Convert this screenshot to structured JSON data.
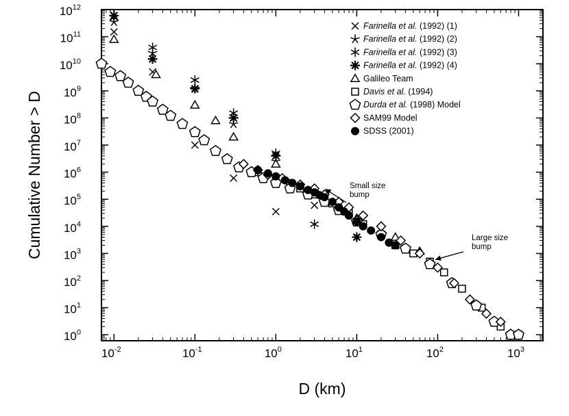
{
  "chart_data": {
    "type": "scatter",
    "title": "",
    "xlabel": "D (km)",
    "ylabel": "Cumulative Number > D",
    "x_scale": "log",
    "y_scale": "log",
    "xlim": [
      0.007,
      2000
    ],
    "ylim": [
      0.6,
      1000000000000.0
    ],
    "x_ticks": [
      {
        "value": 0.01,
        "base": "10",
        "exp": "-2"
      },
      {
        "value": 0.1,
        "base": "10",
        "exp": "-1"
      },
      {
        "value": 1,
        "base": "10",
        "exp": "0"
      },
      {
        "value": 10,
        "base": "10",
        "exp": "1"
      },
      {
        "value": 100,
        "base": "10",
        "exp": "2"
      },
      {
        "value": 1000,
        "base": "10",
        "exp": "3"
      }
    ],
    "y_ticks": [
      {
        "value": 1,
        "base": "10",
        "exp": "0"
      },
      {
        "value": 10,
        "base": "10",
        "exp": "1"
      },
      {
        "value": 100,
        "base": "10",
        "exp": "2"
      },
      {
        "value": 1000,
        "base": "10",
        "exp": "3"
      },
      {
        "value": 10000,
        "base": "10",
        "exp": "4"
      },
      {
        "value": 100000,
        "base": "10",
        "exp": "5"
      },
      {
        "value": 1000000,
        "base": "10",
        "exp": "6"
      },
      {
        "value": 10000000,
        "base": "10",
        "exp": "7"
      },
      {
        "value": 100000000,
        "base": "10",
        "exp": "8"
      },
      {
        "value": 1000000000,
        "base": "10",
        "exp": "9"
      },
      {
        "value": 10000000000,
        "base": "10",
        "exp": "10"
      },
      {
        "value": 100000000000,
        "base": "10",
        "exp": "11"
      },
      {
        "value": 1000000000000,
        "base": "10",
        "exp": "12"
      }
    ],
    "legend_position": "top-right",
    "series": [
      {
        "name": "Farinella et al. (1992) (1)",
        "italic": "Farinella et al.",
        "rest": " (1992) (1)",
        "marker": "x",
        "x": [
          0.01,
          0.03,
          0.1,
          0.3,
          1,
          3
        ],
        "y": [
          150000000000.0,
          5000000000.0,
          10000000.0,
          600000.0,
          35000.0,
          60000.0
        ]
      },
      {
        "name": "Farinella et al. (1992) (2)",
        "italic": "Farinella et al.",
        "rest": " (1992) (2)",
        "marker": "star5",
        "x": [
          0.01,
          0.03,
          0.1,
          0.3,
          1,
          3
        ],
        "y": [
          350000000000.0,
          25000000000.0,
          1200000000.0,
          60000000.0,
          2500000.0,
          150000.0
        ]
      },
      {
        "name": "Farinella et al. (1992) (3)",
        "italic": "Farinella et al.",
        "rest": " (1992) (3)",
        "marker": "star6",
        "x": [
          0.01,
          0.03,
          0.1,
          0.3,
          1,
          3
        ],
        "y": [
          500000000000.0,
          40000000000.0,
          2500000000.0,
          150000000.0,
          5000000.0,
          12000.0
        ]
      },
      {
        "name": "Farinella et al. (1992) (4)",
        "italic": "Farinella et al.",
        "rest": " (1992) (4)",
        "marker": "star8",
        "x": [
          0.01,
          0.03,
          0.1,
          0.3,
          1,
          3,
          10
        ],
        "y": [
          600000000000.0,
          15000000000.0,
          1200000000.0,
          100000000.0,
          4000000.0,
          200000.0,
          4000.0
        ]
      },
      {
        "name": "Galileo Team",
        "italic": "",
        "rest": "Galileo Team",
        "marker": "triangle",
        "x": [
          0.01,
          0.033,
          0.1,
          0.18,
          0.3,
          1,
          3,
          10,
          30,
          60
        ],
        "y": [
          80000000000.0,
          4000000000.0,
          300000000.0,
          80000000.0,
          20000000.0,
          2000000.0,
          150000.0,
          20000.0,
          4000.0,
          1200.0
        ]
      },
      {
        "name": "Davis et al. (1994)",
        "italic": "Davis et al.",
        "rest": " (1994)",
        "marker": "square",
        "x": [
          0.6,
          1,
          1.5,
          2,
          3,
          5,
          8,
          12,
          20,
          30,
          50,
          80,
          120,
          200,
          350,
          600,
          1000
        ],
        "y": [
          1000000.0,
          600000.0,
          400000.0,
          250000.0,
          150000.0,
          70000.0,
          30000.0,
          12000.0,
          5000.0,
          2000.0,
          1000.0,
          500,
          200,
          50,
          10,
          2,
          1
        ]
      },
      {
        "name": "Durda et al. (1998) Model",
        "italic": "Durda et al.",
        "rest": " (1998) Model",
        "marker": "pentagon",
        "x": [
          0.007,
          0.009,
          0.012,
          0.015,
          0.02,
          0.025,
          0.03,
          0.04,
          0.05,
          0.07,
          0.1,
          0.13,
          0.18,
          0.25,
          0.35,
          0.5,
          0.7,
          1,
          1.5,
          2.5,
          4,
          6,
          10,
          20,
          40,
          80,
          150,
          300,
          500,
          800,
          1000
        ],
        "y": [
          10000000000.0,
          5000000000.0,
          3500000000.0,
          2000000000.0,
          1000000000.0,
          600000000.0,
          400000000.0,
          200000000.0,
          120000000.0,
          60000000.0,
          30000000.0,
          15000000.0,
          6000000.0,
          3000000.0,
          1500000.0,
          1000000.0,
          600000.0,
          400000.0,
          250000.0,
          150000.0,
          80000.0,
          40000.0,
          15000.0,
          5000.0,
          1500.0,
          400,
          80,
          12,
          3,
          1,
          1
        ]
      },
      {
        "name": "SAM99 Model",
        "italic": "",
        "rest": "SAM99 Model",
        "marker": "diamond",
        "x": [
          0.4,
          0.6,
          0.8,
          1.2,
          2,
          3,
          4,
          6,
          8,
          12,
          20,
          35,
          60,
          100,
          160,
          250,
          400,
          600
        ],
        "y": [
          2000000.0,
          1200000.0,
          800000.0,
          600000.0,
          350000.0,
          250000.0,
          150000.0,
          80000.0,
          50000.0,
          25000.0,
          10000.0,
          3000.0,
          1000.0,
          300,
          80,
          20,
          6,
          3
        ]
      },
      {
        "name": "SDSS (2001)",
        "italic": "",
        "rest": "SDSS (2001)",
        "marker": "circle",
        "x": [
          0.6,
          0.8,
          1,
          1.3,
          1.6,
          2,
          2.5,
          3,
          3.5,
          4,
          5,
          6,
          7,
          8,
          10,
          12,
          15,
          20,
          25,
          30
        ],
        "y": [
          1200000.0,
          900000.0,
          700000.0,
          500000.0,
          400000.0,
          300000.0,
          220000.0,
          180000.0,
          140000.0,
          120000.0,
          80000.0,
          50000.0,
          35000.0,
          25000.0,
          15000.0,
          10000.0,
          7000.0,
          4000.0,
          2500.0,
          2000.0
        ]
      }
    ],
    "annotations": [
      {
        "lines": [
          "Small size",
          "bump"
        ],
        "arrow_to": [
          3.5,
          200000.0
        ]
      },
      {
        "lines": [
          "Large size",
          "bump"
        ],
        "arrow_to": [
          80,
          500
        ]
      }
    ]
  }
}
